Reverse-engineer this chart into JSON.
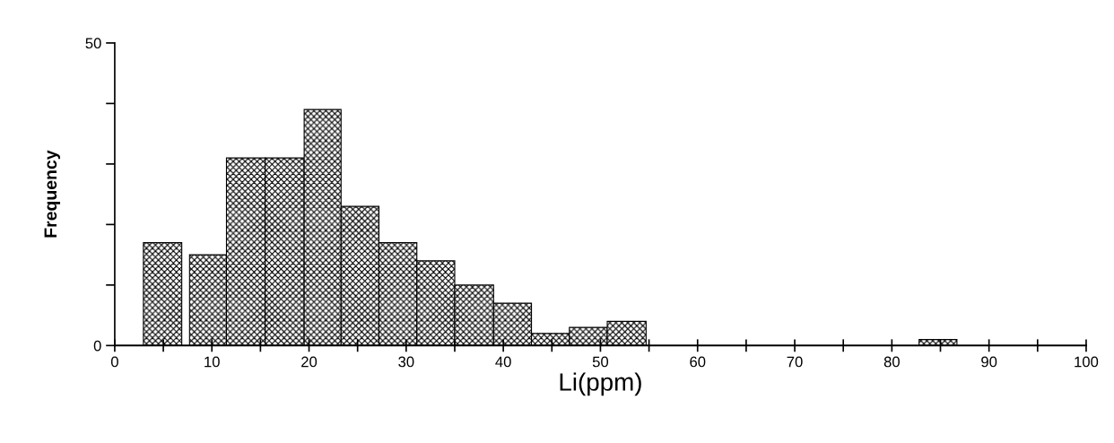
{
  "chart_data": {
    "type": "histogram",
    "xlabel": "Li(ppm)",
    "ylabel": "Frequency",
    "bins": [
      2.95,
      6.9,
      7.7,
      11.5,
      15.5,
      19.5,
      23.3,
      27.2,
      31.1,
      35.0,
      39.0,
      42.9,
      46.8,
      50.7,
      54.7,
      82.8,
      86.7
    ],
    "values": [
      17,
      0,
      15,
      31,
      31,
      39,
      23,
      17,
      14,
      10,
      7,
      2,
      3,
      4,
      0,
      1
    ],
    "color": "#000000",
    "xlim": [
      0,
      100
    ],
    "xticks": [
      0,
      {
        "value": 5,
        "label": null
      },
      10,
      {
        "value": 15,
        "label": null
      },
      20,
      {
        "value": 25,
        "label": null
      },
      30,
      {
        "value": 35,
        "label": null
      },
      40,
      {
        "value": 45,
        "label": null
      },
      50,
      {
        "value": 55,
        "label": null
      },
      60,
      {
        "value": 65,
        "label": null
      },
      70,
      {
        "value": 75,
        "label": null
      },
      80,
      {
        "value": 85,
        "label": null
      },
      90,
      {
        "value": 95,
        "label": null
      },
      100
    ],
    "ylim": [
      0,
      50
    ],
    "yticks": [
      0,
      {
        "value": 10,
        "label": null
      },
      {
        "value": 20,
        "label": null
      },
      {
        "value": 30,
        "label": null
      },
      {
        "value": 40,
        "label": null
      },
      50
    ],
    "grid": false,
    "legend": false
  }
}
